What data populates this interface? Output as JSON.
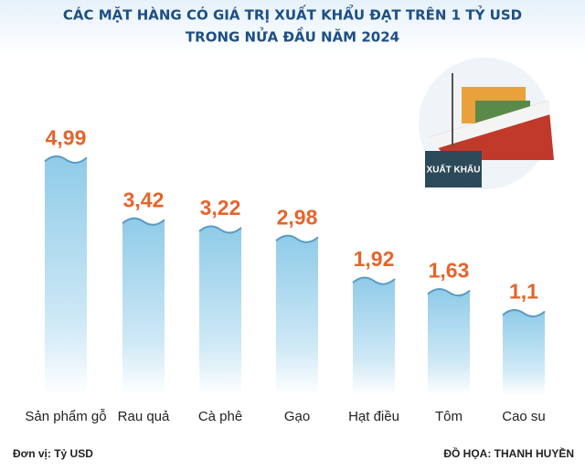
{
  "chart_data": {
    "type": "bar",
    "title": [
      "CÁC MẶT HÀNG CÓ GIÁ TRỊ XUẤT KHẨU ĐẠT TRÊN 1 TỶ USD",
      "TRONG NỬA ĐẦU NĂM 2024"
    ],
    "categories": [
      "Sản phẩm gỗ",
      "Rau quả",
      "Cà phê",
      "Gạo",
      "Hạt điều",
      "Tôm",
      "Cao su"
    ],
    "values": [
      4.99,
      3.42,
      3.22,
      2.98,
      1.92,
      1.63,
      1.1
    ],
    "value_labels": [
      "4,99",
      "3,42",
      "3,22",
      "2,98",
      "1,92",
      "1,63",
      "1,1"
    ],
    "color": "#8fcbe8",
    "unit_note": "Đơn vị: Tỷ USD",
    "credit": "ĐỒ HỌA: THANH HUYỀN",
    "illustration_label": "XUẤT KHẨU"
  }
}
